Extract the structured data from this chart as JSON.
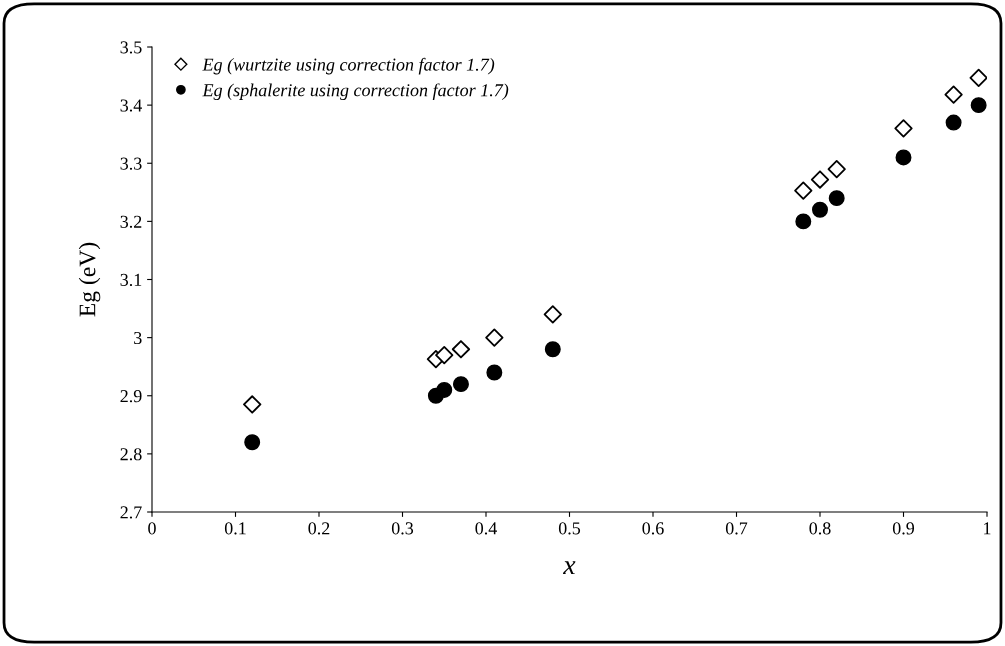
{
  "chart_data": {
    "type": "scatter",
    "xlabel": "x",
    "ylabel": "Eg (eV)",
    "xlim": [
      0,
      1
    ],
    "xticks": [
      0,
      0.1,
      0.2,
      0.3,
      0.4,
      0.5,
      0.6,
      0.7,
      0.8,
      0.9,
      1
    ],
    "ylim": [
      2.7,
      3.5
    ],
    "yticks": [
      2.7,
      2.8,
      2.9,
      3,
      3.1,
      3.2,
      3.3,
      3.4,
      3.5
    ],
    "grid": false,
    "legend": "top left",
    "series": [
      {
        "name": "Eg (wurtzite using correction factor 1.7)",
        "color": "#000000",
        "marker": "diamond",
        "x": [
          0.12,
          0.34,
          0.35,
          0.37,
          0.41,
          0.48,
          0.78,
          0.8,
          0.82,
          0.9,
          0.96,
          0.99
        ],
        "values": [
          2.885,
          2.963,
          2.97,
          2.98,
          3.0,
          3.04,
          3.253,
          3.272,
          3.29,
          3.36,
          3.418,
          3.447
        ]
      },
      {
        "name": "Eg (sphalerite using correction factor 1.7)",
        "color": "#000000",
        "marker": "circle",
        "x": [
          0.12,
          0.34,
          0.35,
          0.37,
          0.41,
          0.48,
          0.78,
          0.8,
          0.82,
          0.9,
          0.96,
          0.99
        ],
        "values": [
          2.82,
          2.9,
          2.91,
          2.92,
          2.94,
          2.98,
          3.2,
          3.22,
          3.24,
          3.31,
          3.37,
          3.4
        ]
      }
    ]
  }
}
